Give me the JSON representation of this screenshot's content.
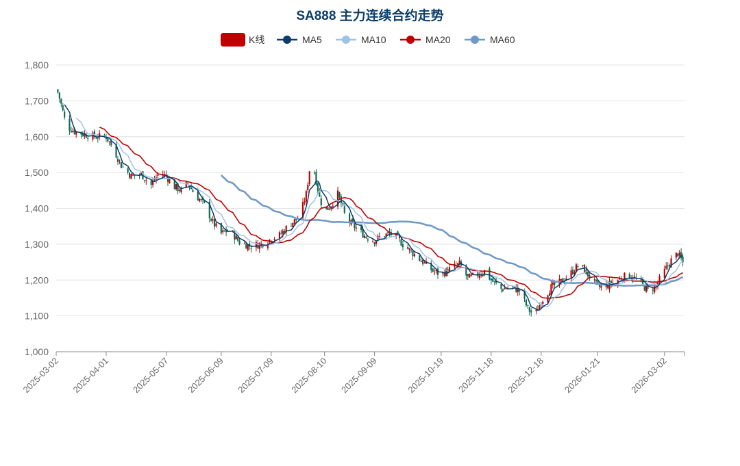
{
  "chart_data": {
    "type": "candlestick",
    "title": "SA888 主力连续合约走势",
    "legend": [
      {
        "name": "K线",
        "color": "#c00000",
        "shape": "rect"
      },
      {
        "name": "MA5",
        "color": "#0c3d6b",
        "shape": "line-dot"
      },
      {
        "name": "MA10",
        "color": "#9ec3e6",
        "shape": "line-dot"
      },
      {
        "name": "MA20",
        "color": "#c00000",
        "shape": "line-dot"
      },
      {
        "name": "MA60",
        "color": "#6f9ac8",
        "shape": "line-dot"
      }
    ],
    "legend_position": "top-center",
    "ylim": [
      1000,
      1800
    ],
    "yticks": [
      1000,
      1100,
      1200,
      1300,
      1400,
      1500,
      1600,
      1700,
      1800
    ],
    "ytick_labels": [
      "1,000",
      "1,100",
      "1,200",
      "1,300",
      "1,400",
      "1,500",
      "1,600",
      "1,700",
      "1,800"
    ],
    "xticks": [
      "2025-03-02",
      "2025-04-01",
      "2025-05-07",
      "2025-06-09",
      "2025-07-09",
      "2025-08-10",
      "2025-09-09",
      "2025-10-19",
      "2025-11-18",
      "2025-12-18",
      "2026-01-21",
      "2026-03-02"
    ],
    "x_range": [
      "2025-03-02",
      "2026-03-14"
    ],
    "grid": true,
    "up_color": "#c00000",
    "down_color": "#0f6b50",
    "close_anchors": [
      [
        "2025-03-02",
        1740
      ],
      [
        "2025-03-05",
        1690
      ],
      [
        "2025-03-08",
        1630
      ],
      [
        "2025-03-13",
        1615
      ],
      [
        "2025-03-20",
        1605
      ],
      [
        "2025-03-26",
        1600
      ],
      [
        "2025-04-01",
        1600
      ],
      [
        "2025-04-05",
        1570
      ],
      [
        "2025-04-10",
        1520
      ],
      [
        "2025-04-16",
        1490
      ],
      [
        "2025-04-22",
        1495
      ],
      [
        "2025-04-28",
        1465
      ],
      [
        "2025-05-03",
        1500
      ],
      [
        "2025-05-07",
        1490
      ],
      [
        "2025-05-12",
        1460
      ],
      [
        "2025-05-16",
        1450
      ],
      [
        "2025-05-20",
        1470
      ],
      [
        "2025-05-24",
        1440
      ],
      [
        "2025-05-30",
        1410
      ],
      [
        "2025-06-04",
        1360
      ],
      [
        "2025-06-09",
        1330
      ],
      [
        "2025-06-14",
        1340
      ],
      [
        "2025-06-20",
        1305
      ],
      [
        "2025-06-26",
        1295
      ],
      [
        "2025-07-03",
        1300
      ],
      [
        "2025-07-09",
        1315
      ],
      [
        "2025-07-14",
        1325
      ],
      [
        "2025-07-20",
        1355
      ],
      [
        "2025-07-26",
        1375
      ],
      [
        "2025-07-30",
        1440
      ],
      [
        "2025-08-02",
        1540
      ],
      [
        "2025-08-04",
        1500
      ],
      [
        "2025-08-07",
        1430
      ],
      [
        "2025-08-10",
        1390
      ],
      [
        "2025-08-14",
        1410
      ],
      [
        "2025-08-18",
        1440
      ],
      [
        "2025-08-23",
        1370
      ],
      [
        "2025-08-29",
        1345
      ],
      [
        "2025-09-04",
        1320
      ],
      [
        "2025-09-09",
        1310
      ],
      [
        "2025-09-14",
        1325
      ],
      [
        "2025-09-20",
        1330
      ],
      [
        "2025-09-26",
        1300
      ],
      [
        "2025-10-02",
        1275
      ],
      [
        "2025-10-08",
        1250
      ],
      [
        "2025-10-14",
        1225
      ],
      [
        "2025-10-19",
        1215
      ],
      [
        "2025-10-24",
        1230
      ],
      [
        "2025-10-30",
        1245
      ],
      [
        "2025-11-04",
        1205
      ],
      [
        "2025-11-10",
        1215
      ],
      [
        "2025-11-14",
        1225
      ],
      [
        "2025-11-18",
        1200
      ],
      [
        "2025-11-24",
        1175
      ],
      [
        "2025-11-30",
        1180
      ],
      [
        "2025-12-05",
        1170
      ],
      [
        "2025-12-10",
        1120
      ],
      [
        "2025-12-14",
        1100
      ],
      [
        "2025-12-18",
        1140
      ],
      [
        "2025-12-24",
        1180
      ],
      [
        "2025-12-30",
        1195
      ],
      [
        "2026-01-05",
        1220
      ],
      [
        "2026-01-10",
        1245
      ],
      [
        "2026-01-15",
        1215
      ],
      [
        "2026-01-21",
        1180
      ],
      [
        "2026-01-27",
        1185
      ],
      [
        "2026-02-02",
        1200
      ],
      [
        "2026-02-08",
        1215
      ],
      [
        "2026-02-14",
        1200
      ],
      [
        "2026-02-20",
        1170
      ],
      [
        "2026-02-25",
        1185
      ],
      [
        "2026-03-02",
        1225
      ],
      [
        "2026-03-06",
        1255
      ],
      [
        "2026-03-10",
        1275
      ],
      [
        "2026-03-14",
        1240
      ]
    ],
    "ma60_start": "2025-06-09"
  }
}
